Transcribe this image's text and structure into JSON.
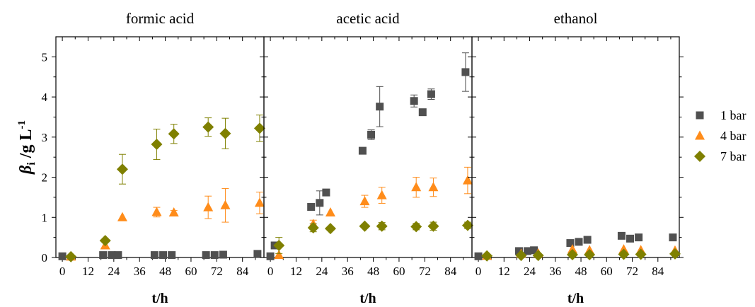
{
  "chart_data": {
    "type": "scatter",
    "ylabel": {
      "main": "β",
      "sub": "i",
      "rest": " /g L",
      "sup": "-1"
    },
    "xlabel": "t/h",
    "x_ticks": [
      "0",
      "12",
      "24",
      "36",
      "48",
      "60",
      "72",
      "84"
    ],
    "y_ticks": [
      "0",
      "1",
      "2",
      "3",
      "4",
      "5"
    ],
    "xlim": [
      -3,
      94
    ],
    "ylim": [
      0,
      5.5
    ],
    "legend": {
      "position": "right",
      "entries": [
        {
          "label": "1 bar",
          "marker": "square",
          "color": "#505050"
        },
        {
          "label": "4 bar",
          "marker": "triangle",
          "color": "#FF8C1A"
        },
        {
          "label": "7 bar",
          "marker": "diamond",
          "color": "#7F8000"
        }
      ]
    },
    "panels": [
      {
        "title": "formic acid",
        "series": [
          {
            "name": "1 bar",
            "points": [
              [
                0,
                0.03,
                0
              ],
              [
                19,
                0.06,
                0
              ],
              [
                23,
                0.06,
                0
              ],
              [
                26,
                0.06,
                0
              ],
              [
                43,
                0.06,
                0
              ],
              [
                47,
                0.06,
                0
              ],
              [
                51,
                0.06,
                0
              ],
              [
                67,
                0.06,
                0
              ],
              [
                71,
                0.06,
                0
              ],
              [
                75,
                0.07,
                0
              ],
              [
                91,
                0.09,
                0
              ]
            ]
          },
          {
            "name": "4 bar",
            "points": [
              [
                4,
                0.02,
                0
              ],
              [
                20,
                0.3,
                0
              ],
              [
                28,
                1.0,
                0
              ],
              [
                44,
                1.13,
                0.12
              ],
              [
                52,
                1.12,
                0.05
              ],
              [
                68,
                1.25,
                0.28
              ],
              [
                76,
                1.3,
                0.42
              ],
              [
                92,
                1.36,
                0.27
              ]
            ]
          },
          {
            "name": "7 bar",
            "points": [
              [
                4,
                0.02,
                0
              ],
              [
                20,
                0.42,
                0
              ],
              [
                28,
                2.2,
                0.37
              ],
              [
                44,
                2.82,
                0.38
              ],
              [
                52,
                3.08,
                0.24
              ],
              [
                68,
                3.25,
                0.23
              ],
              [
                76,
                3.09,
                0.38
              ],
              [
                92,
                3.22,
                0.33
              ]
            ]
          }
        ]
      },
      {
        "title": "acetic acid",
        "series": [
          {
            "name": "1 bar",
            "points": [
              [
                0,
                0.03,
                0
              ],
              [
                2,
                0.3,
                0
              ],
              [
                19,
                1.26,
                0
              ],
              [
                23,
                1.36,
                0.3
              ],
              [
                26,
                1.62,
                0
              ],
              [
                43,
                2.66,
                0
              ],
              [
                47,
                3.06,
                0.12
              ],
              [
                51,
                3.76,
                0.5
              ],
              [
                67,
                3.9,
                0.15
              ],
              [
                71,
                3.62,
                0
              ],
              [
                75,
                4.07,
                0.13
              ],
              [
                91,
                4.62,
                0.48
              ]
            ]
          },
          {
            "name": "4 bar",
            "points": [
              [
                4,
                0.06,
                0
              ],
              [
                20,
                0.83,
                0.1
              ],
              [
                28,
                1.12,
                0
              ],
              [
                44,
                1.4,
                0.15
              ],
              [
                52,
                1.55,
                0.2
              ],
              [
                68,
                1.75,
                0.25
              ],
              [
                76,
                1.75,
                0.23
              ],
              [
                92,
                1.92,
                0.33
              ]
            ]
          },
          {
            "name": "7 bar",
            "points": [
              [
                4,
                0.3,
                0.2
              ],
              [
                20,
                0.74,
                0.1
              ],
              [
                28,
                0.72,
                0
              ],
              [
                44,
                0.78,
                0
              ],
              [
                52,
                0.78,
                0.09
              ],
              [
                68,
                0.77,
                0.08
              ],
              [
                76,
                0.78,
                0.1
              ],
              [
                92,
                0.8,
                0.08
              ]
            ]
          }
        ]
      },
      {
        "title": "ethanol",
        "series": [
          {
            "name": "1 bar",
            "points": [
              [
                0,
                0.03,
                0
              ],
              [
                19,
                0.16,
                0
              ],
              [
                23,
                0.16,
                0
              ],
              [
                26,
                0.18,
                0
              ],
              [
                43,
                0.36,
                0
              ],
              [
                47,
                0.39,
                0
              ],
              [
                51,
                0.44,
                0
              ],
              [
                67,
                0.54,
                0
              ],
              [
                71,
                0.47,
                0
              ],
              [
                75,
                0.5,
                0
              ],
              [
                91,
                0.5,
                0
              ]
            ]
          },
          {
            "name": "4 bar",
            "points": [
              [
                4,
                0.04,
                0
              ],
              [
                20,
                0.09,
                0
              ],
              [
                28,
                0.1,
                0
              ],
              [
                44,
                0.2,
                0
              ],
              [
                52,
                0.18,
                0
              ],
              [
                68,
                0.2,
                0
              ],
              [
                76,
                0.18,
                0
              ],
              [
                92,
                0.17,
                0
              ]
            ]
          },
          {
            "name": "7 bar",
            "points": [
              [
                4,
                0.04,
                0
              ],
              [
                20,
                0.05,
                0
              ],
              [
                28,
                0.05,
                0
              ],
              [
                44,
                0.07,
                0
              ],
              [
                52,
                0.07,
                0
              ],
              [
                68,
                0.08,
                0
              ],
              [
                76,
                0.08,
                0
              ],
              [
                92,
                0.09,
                0
              ]
            ]
          }
        ]
      }
    ]
  }
}
